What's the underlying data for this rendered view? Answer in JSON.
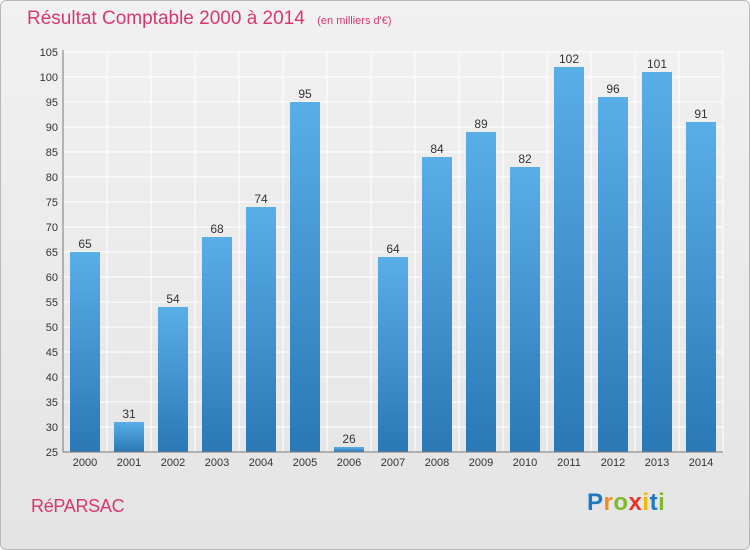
{
  "chart_data": {
    "type": "bar",
    "title": "Résultat Comptable 2000 à 2014",
    "subtitle": "(en milliers d'€)",
    "categories": [
      "2000",
      "2001",
      "2002",
      "2003",
      "2004",
      "2005",
      "2006",
      "2007",
      "2008",
      "2009",
      "2010",
      "2011",
      "2012",
      "2013",
      "2014"
    ],
    "values": [
      65,
      31,
      54,
      68,
      74,
      95,
      26,
      64,
      84,
      89,
      82,
      102,
      96,
      101,
      91
    ],
    "ylim": [
      25,
      105
    ],
    "yticks": [
      25,
      30,
      35,
      40,
      45,
      50,
      55,
      60,
      65,
      70,
      75,
      80,
      85,
      90,
      95,
      100,
      105
    ],
    "grid": true,
    "xlabel": "",
    "ylabel": ""
  },
  "town": "RéPARSAC",
  "logo": {
    "letters": [
      "P",
      "r",
      "o",
      "x",
      "i",
      "t",
      "i"
    ],
    "colors": [
      "#1e78c2",
      "#f28c1e",
      "#7fba2a",
      "#e8352b",
      "#f5b800",
      "#1e78c2",
      "#7fba2a"
    ]
  },
  "colors": {
    "accent": "#d9376e",
    "bar_top": "#5aaee8",
    "bar_bottom": "#2a78b6",
    "grid": "#ffffff",
    "text": "#333333"
  }
}
